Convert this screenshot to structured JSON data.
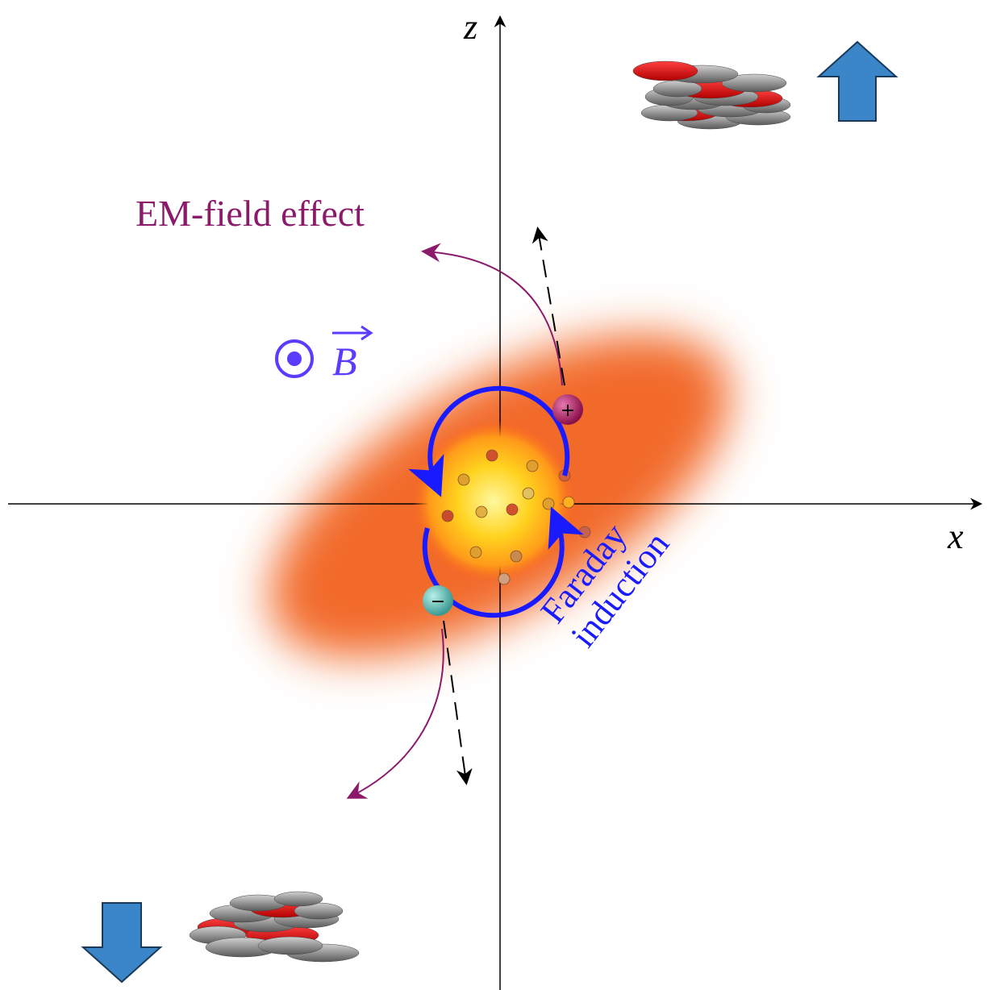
{
  "axes": {
    "z": "z",
    "x": "x"
  },
  "labels": {
    "em_field": "EM-field effect",
    "magnetic_field": "B",
    "faraday": [
      "Faraday",
      "induction"
    ]
  },
  "charges": {
    "positive": "+",
    "negative": "−"
  }
}
